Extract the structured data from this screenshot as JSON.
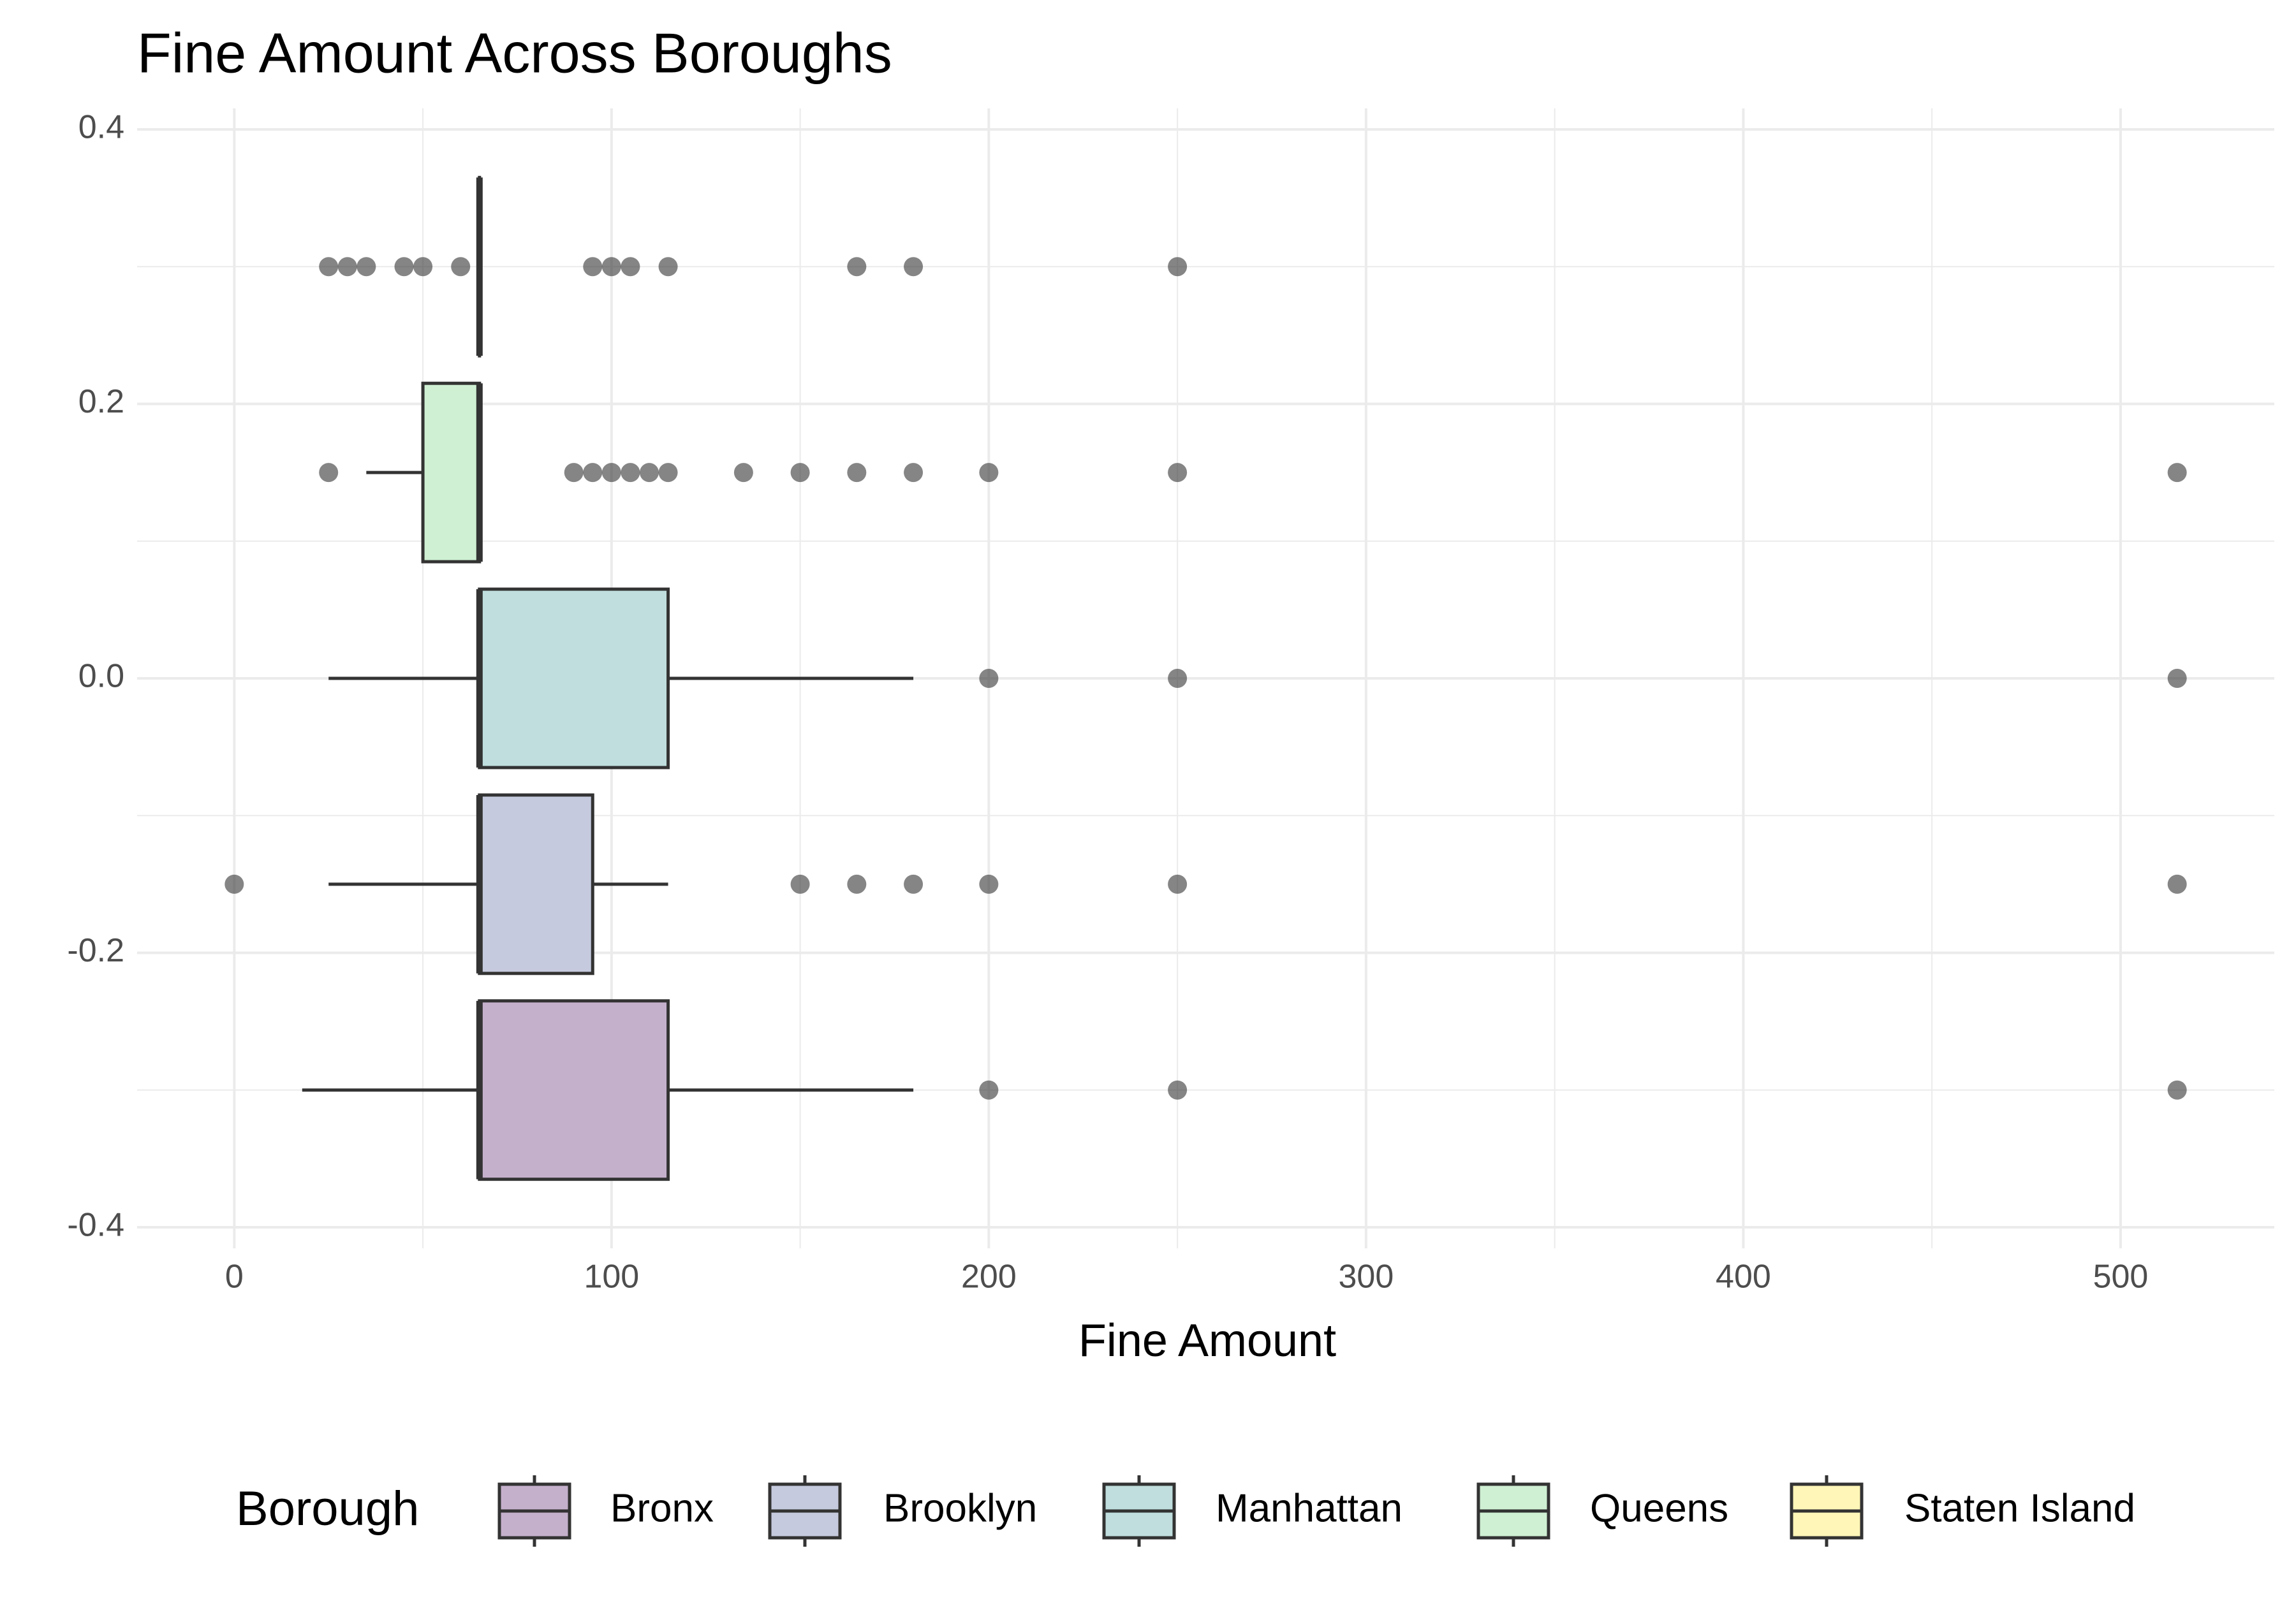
{
  "chart_data": {
    "type": "boxplot",
    "orientation": "horizontal",
    "title": "Fine Amount Across Boroughs",
    "x_label": "Fine Amount",
    "legend_title": "Borough",
    "legend_position": "bottom",
    "grid": true,
    "xlim": [
      -25.75,
      540.75
    ],
    "xticks": [
      0,
      100,
      200,
      300,
      400,
      500
    ],
    "xminor": [
      50,
      150,
      250,
      350,
      450
    ],
    "ylim": [
      -0.4,
      0.4
    ],
    "yticks": [
      0.4,
      0.2,
      {
        "value": 0,
        "label": "0.0"
      },
      -0.2,
      -0.4
    ],
    "yminor": [
      0.3,
      0.1,
      -0.1,
      -0.3
    ],
    "series": [
      {
        "name": "Bronx",
        "color": "#c5b0cc",
        "position": -0.3,
        "whisker_low": 18,
        "q1": 65,
        "median": 65,
        "q3": 115,
        "whisker_high": 180,
        "outliers": [
          200,
          250,
          515
        ]
      },
      {
        "name": "Brooklyn",
        "color": "#c5cade",
        "position": -0.15,
        "whisker_low": 25,
        "q1": 65,
        "median": 65,
        "q3": 95,
        "whisker_high": 115,
        "outliers": [
          0,
          150,
          165,
          180,
          200,
          250,
          515
        ]
      },
      {
        "name": "Manhattan",
        "color": "#bfdedd",
        "position": 0,
        "whisker_low": 25,
        "q1": 65,
        "median": 65,
        "q3": 115,
        "whisker_high": 180,
        "outliers": [
          200,
          250,
          515
        ]
      },
      {
        "name": "Queens",
        "color": "#cff0d3",
        "position": 0.15,
        "whisker_low": 35,
        "q1": 50,
        "median": 65,
        "q3": 65,
        "whisker_high": 65,
        "outliers": [
          25,
          90,
          95,
          100,
          105,
          110,
          115,
          135,
          150,
          165,
          180,
          200,
          250,
          515
        ]
      },
      {
        "name": "Staten Island",
        "color": "#fff6b8",
        "position": 0.3,
        "whisker_low": 65,
        "q1": 65,
        "median": 65,
        "q3": 65,
        "whisker_high": 65,
        "outliers": [
          25,
          30,
          35,
          45,
          50,
          60,
          95,
          100,
          105,
          115,
          165,
          180,
          250
        ]
      }
    ]
  }
}
